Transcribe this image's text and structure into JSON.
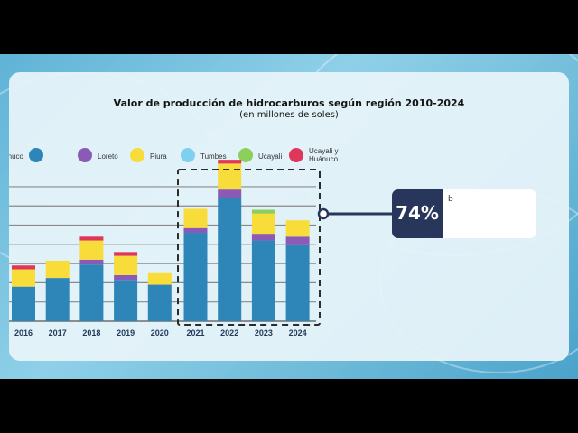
{
  "chart_data": {
    "type": "bar",
    "title": "Valor de producción de hidrocarburos según región 2010-2024",
    "subtitle": "(en millones de soles)",
    "categories": [
      "2016",
      "2017",
      "2018",
      "2019",
      "2020",
      "2021",
      "2022",
      "2023",
      "2024"
    ],
    "legend": [
      {
        "name": "uánuco",
        "color": "#2e86b8"
      },
      {
        "name": "Loreto",
        "color": "#8b5ab6"
      },
      {
        "name": "Piura",
        "color": "#f7dc3a"
      },
      {
        "name": "Tumbes",
        "color": "#7fd0ee"
      },
      {
        "name": "Ucayali",
        "color": "#8ccf5a"
      },
      {
        "name": "Ucayali y Huánuco",
        "color": "#e0365a"
      }
    ],
    "series": [
      {
        "name": "Cusco / Huánuco",
        "color": "#2e86b8",
        "values": [
          3.6,
          4.5,
          5.9,
          4.3,
          3.8,
          9.2,
          12.8,
          8.4,
          7.9
        ]
      },
      {
        "name": "Loreto",
        "color": "#8b5ab6",
        "values": [
          0.0,
          0.0,
          0.5,
          0.5,
          0.0,
          0.5,
          0.9,
          0.7,
          0.9
        ]
      },
      {
        "name": "Piura",
        "color": "#f7dc3a",
        "values": [
          1.8,
          1.8,
          2.0,
          2.0,
          1.2,
          2.0,
          2.7,
          2.1,
          1.7
        ]
      },
      {
        "name": "Tumbes",
        "color": "#7fd0ee",
        "values": [
          0,
          0,
          0,
          0,
          0,
          0,
          0,
          0,
          0
        ]
      },
      {
        "name": "Ucayali",
        "color": "#8ccf5a",
        "values": [
          0,
          0,
          0,
          0,
          0,
          0,
          0,
          0.4,
          0
        ]
      },
      {
        "name": "Ucayali y Huánuco",
        "color": "#e0365a",
        "values": [
          0.4,
          0.0,
          0.4,
          0.4,
          0,
          0,
          0.4,
          0,
          0
        ]
      }
    ],
    "ylim": [
      0,
      17
    ],
    "highlight": {
      "start": "2021",
      "end": "2024"
    },
    "callout": {
      "value": "74%"
    }
  },
  "callout_cursor": "b"
}
